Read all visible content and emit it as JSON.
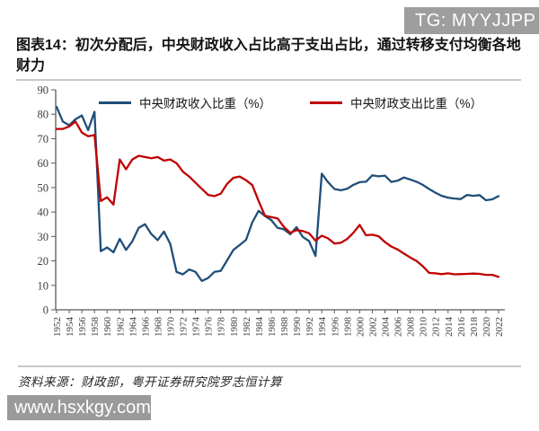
{
  "header": {
    "tg_badge": "TG: MYYJJPP",
    "title": "图表14：初次分配后，中央财政收入占比高于支出占比，通过转移支付均衡各地财力"
  },
  "footer": {
    "source": "资料来源：财政部，粤开证券研究院罗志恒计算",
    "watermark": "www.hsxkgy.com"
  },
  "colors": {
    "revenue_line": "#1f4e79",
    "expenditure_line": "#c00000",
    "axis": "#595959",
    "tick_label": "#3f3f3f",
    "badge_bg": "#9e9e9e"
  },
  "chart_data": {
    "type": "line",
    "title": "",
    "xlabel": "",
    "ylabel": "",
    "ylim": [
      0,
      90
    ],
    "ytick_step": 10,
    "xtick_step": 2,
    "grid": false,
    "legend_position": "top",
    "x": [
      1952,
      1953,
      1954,
      1955,
      1956,
      1957,
      1958,
      1959,
      1960,
      1961,
      1962,
      1963,
      1964,
      1965,
      1966,
      1967,
      1968,
      1969,
      1970,
      1971,
      1972,
      1973,
      1974,
      1975,
      1976,
      1977,
      1978,
      1979,
      1980,
      1981,
      1982,
      1983,
      1984,
      1985,
      1986,
      1987,
      1988,
      1989,
      1990,
      1991,
      1992,
      1993,
      1994,
      1995,
      1996,
      1997,
      1998,
      1999,
      2000,
      2001,
      2002,
      2003,
      2004,
      2005,
      2006,
      2007,
      2008,
      2009,
      2010,
      2011,
      2012,
      2013,
      2014,
      2015,
      2016,
      2017,
      2018,
      2019,
      2020,
      2021,
      2022
    ],
    "series": [
      {
        "name": "中央财政收入比重（%）",
        "color": "#1f4e79",
        "values": [
          83,
          77,
          75.5,
          78,
          79.5,
          73.5,
          81,
          24,
          25.5,
          23.5,
          29,
          24.5,
          28,
          33.5,
          35,
          31,
          28.5,
          32,
          27,
          15.5,
          14.5,
          16.5,
          15.5,
          11.8,
          13,
          15.5,
          15.9,
          20.2,
          24.5,
          26.5,
          28.6,
          35.8,
          40.5,
          38.4,
          36.7,
          33.5,
          32.9,
          30.9,
          33.8,
          29.8,
          28.1,
          22,
          55.7,
          52.2,
          49.4,
          48.9,
          49.5,
          51.1,
          52.2,
          52.4,
          55,
          54.6,
          54.9,
          52.3,
          52.8,
          54.1,
          53.3,
          52.4,
          51.1,
          49.4,
          47.9,
          46.6,
          45.9,
          45.5,
          45.3,
          47,
          46.6,
          46.9,
          44.8,
          45.2,
          46.5
        ]
      },
      {
        "name": "中央财政支出比重（%）",
        "color": "#c00000",
        "values": [
          74,
          74,
          75,
          77,
          72.5,
          71,
          71.5,
          44.5,
          46,
          43,
          61.5,
          57.5,
          61.5,
          63,
          62.5,
          62,
          62.5,
          61,
          61.5,
          60,
          56.5,
          54.5,
          52,
          49.5,
          47,
          46.5,
          47.5,
          51.5,
          54,
          54.5,
          53,
          51,
          44.5,
          38.5,
          37.9,
          37.4,
          33.9,
          31.5,
          32.6,
          32.2,
          31.3,
          28.3,
          30.3,
          29.2,
          27.1,
          27.4,
          28.9,
          31.5,
          34.7,
          30.5,
          30.7,
          30.1,
          27.7,
          25.9,
          24.7,
          23,
          21.4,
          20,
          17.8,
          15.1,
          14.9,
          14.6,
          14.9,
          14.5,
          14.6,
          14.7,
          14.8,
          14.7,
          14.3,
          14.3,
          13.5
        ]
      }
    ]
  }
}
